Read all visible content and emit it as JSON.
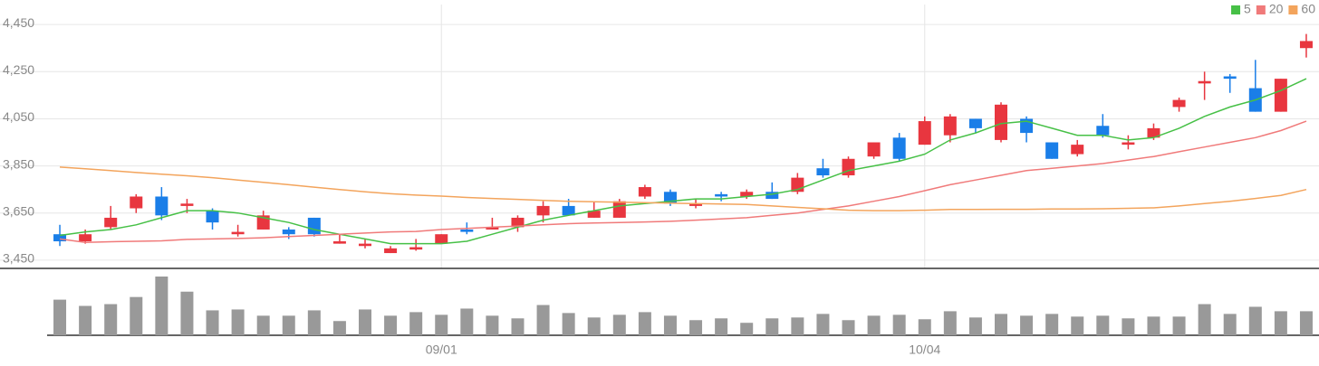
{
  "chart_data": [
    {
      "type": "candlestick",
      "categories": [
        null,
        null,
        null,
        null,
        null,
        null,
        null,
        null,
        null,
        null,
        null,
        null,
        null,
        null,
        null,
        "09/01",
        null,
        null,
        null,
        null,
        null,
        null,
        null,
        null,
        null,
        null,
        null,
        null,
        null,
        null,
        null,
        null,
        null,
        null,
        "10/04",
        null,
        null,
        null,
        null,
        null,
        null,
        null,
        null,
        null,
        null,
        null,
        null,
        null,
        null,
        null
      ],
      "open": [
        3560,
        3530,
        3590,
        3670,
        3720,
        3680,
        3660,
        3560,
        3580,
        3580,
        3630,
        3520,
        3510,
        3480,
        3495,
        3520,
        3580,
        3580,
        3590,
        3640,
        3680,
        3630,
        3630,
        3720,
        3740,
        3680,
        3730,
        3720,
        3740,
        3740,
        3840,
        3810,
        3890,
        3970,
        3940,
        3980,
        4050,
        3960,
        4050,
        3950,
        3900,
        4020,
        3940,
        3970,
        4100,
        4200,
        4230,
        4180,
        4080,
        4350
      ],
      "high": [
        3600,
        3580,
        3680,
        3730,
        3760,
        3710,
        3670,
        3600,
        3660,
        3590,
        3630,
        3560,
        3540,
        3510,
        3540,
        3560,
        3610,
        3630,
        3640,
        3700,
        3710,
        3700,
        3710,
        3770,
        3750,
        3710,
        3740,
        3750,
        3780,
        3820,
        3880,
        3890,
        3950,
        3990,
        4060,
        4070,
        4050,
        4120,
        4060,
        3950,
        3960,
        4070,
        3980,
        4030,
        4140,
        4250,
        4240,
        4300,
        4220,
        4410
      ],
      "low": [
        3510,
        3520,
        3580,
        3650,
        3620,
        3650,
        3580,
        3550,
        3580,
        3540,
        3550,
        3520,
        3500,
        3480,
        3490,
        3520,
        3560,
        3580,
        3570,
        3610,
        3640,
        3630,
        3630,
        3710,
        3680,
        3670,
        3700,
        3710,
        3710,
        3730,
        3800,
        3800,
        3880,
        3870,
        3940,
        3950,
        3990,
        3950,
        3950,
        3880,
        3890,
        3970,
        3920,
        3960,
        4080,
        4130,
        4160,
        4080,
        4080,
        4310
      ],
      "close": [
        3530,
        3560,
        3630,
        3720,
        3640,
        3690,
        3610,
        3570,
        3640,
        3560,
        3560,
        3530,
        3520,
        3500,
        3505,
        3560,
        3570,
        3590,
        3630,
        3680,
        3640,
        3660,
        3700,
        3760,
        3690,
        3690,
        3720,
        3740,
        3710,
        3800,
        3810,
        3880,
        3950,
        3880,
        4040,
        4060,
        4010,
        4110,
        3990,
        3880,
        3940,
        3980,
        3950,
        4010,
        4130,
        4210,
        4220,
        4080,
        4220,
        4380
      ],
      "up_color": "#e8363f",
      "down_color": "#1a7ee8",
      "series": [
        {
          "name": "5",
          "color": "#46c046",
          "values": [
            3555,
            3570,
            3580,
            3600,
            3630,
            3660,
            3660,
            3650,
            3630,
            3610,
            3580,
            3560,
            3540,
            3520,
            3520,
            3520,
            3530,
            3560,
            3590,
            3620,
            3640,
            3660,
            3680,
            3690,
            3700,
            3710,
            3710,
            3720,
            3730,
            3750,
            3790,
            3830,
            3850,
            3870,
            3900,
            3960,
            3990,
            4030,
            4040,
            4010,
            3980,
            3980,
            3960,
            3970,
            4010,
            4060,
            4100,
            4130,
            4170,
            4220
          ]
        },
        {
          "name": "20",
          "color": "#f07a7a",
          "values": [
            3540,
            3525,
            3528,
            3530,
            3532,
            3538,
            3540,
            3542,
            3545,
            3550,
            3555,
            3560,
            3565,
            3570,
            3572,
            3580,
            3585,
            3590,
            3595,
            3600,
            3605,
            3608,
            3610,
            3612,
            3615,
            3620,
            3625,
            3630,
            3640,
            3650,
            3665,
            3680,
            3700,
            3720,
            3745,
            3770,
            3790,
            3810,
            3830,
            3840,
            3850,
            3860,
            3875,
            3890,
            3910,
            3930,
            3950,
            3970,
            4000,
            4040
          ]
        },
        {
          "name": "60",
          "color": "#f3a45c",
          "values": [
            3845,
            3838,
            3830,
            3822,
            3815,
            3808,
            3800,
            3790,
            3780,
            3770,
            3760,
            3750,
            3740,
            3732,
            3726,
            3722,
            3716,
            3712,
            3708,
            3704,
            3700,
            3698,
            3696,
            3694,
            3692,
            3690,
            3688,
            3686,
            3680,
            3674,
            3668,
            3662,
            3660,
            3660,
            3662,
            3665,
            3665,
            3666,
            3666,
            3667,
            3667,
            3668,
            3670,
            3672,
            3680,
            3690,
            3700,
            3712,
            3725,
            3750
          ]
        }
      ],
      "ylim": [
        3415,
        4535
      ],
      "yticks": [
        {
          "value": 3450,
          "label": "3,450"
        },
        {
          "value": 3650,
          "label": "3,650"
        },
        {
          "value": 3850,
          "label": "3,850"
        },
        {
          "value": 4050,
          "label": "4,050"
        },
        {
          "value": 4250,
          "label": "4,250"
        },
        {
          "value": 4450,
          "label": "4,450"
        }
      ],
      "grid": true,
      "legend": "top-right"
    },
    {
      "type": "bar",
      "color": "#999999",
      "values": [
        40,
        33,
        35,
        43,
        66,
        49,
        28,
        29,
        22,
        22,
        28,
        16,
        29,
        22,
        26,
        23,
        30,
        22,
        19,
        34,
        25,
        20,
        23,
        26,
        22,
        17,
        19,
        14,
        19,
        20,
        24,
        17,
        22,
        23,
        18,
        27,
        20,
        24,
        22,
        24,
        21,
        22,
        19,
        21,
        21,
        35,
        24,
        32,
        27,
        27
      ]
    }
  ]
}
